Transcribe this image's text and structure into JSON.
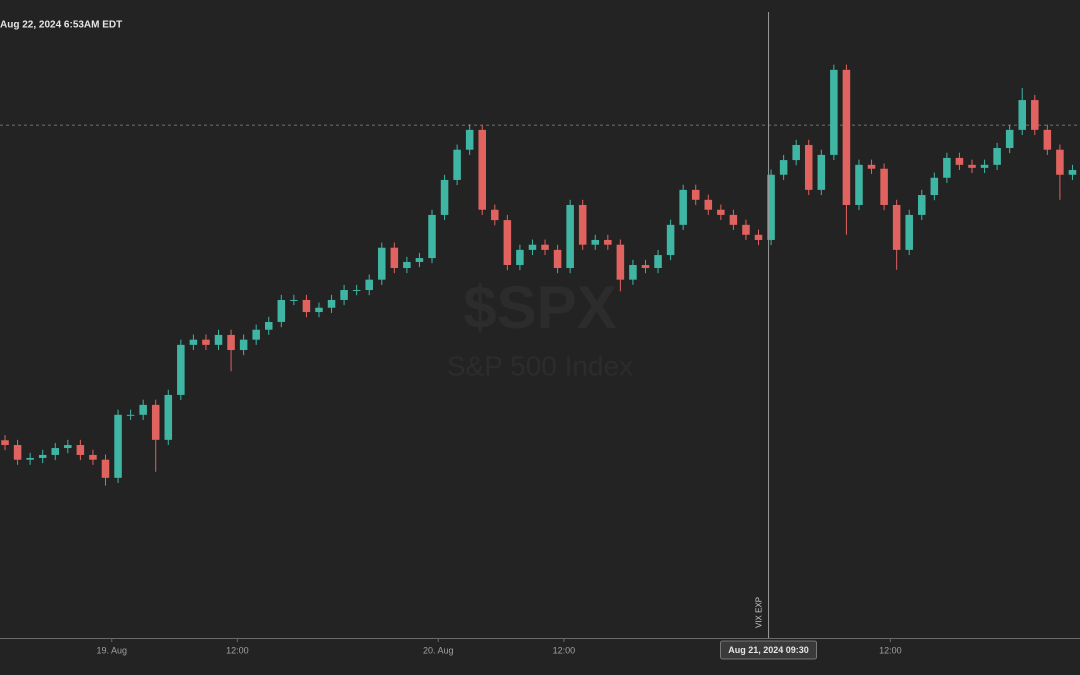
{
  "timestamp": "Aug 22, 2024 6:53AM EDT",
  "chart_data": {
    "type": "candlestick",
    "watermark": {
      "symbol": "$SPX",
      "name": "S&P 500 Index"
    },
    "up_color": "#3fb5a3",
    "down_color": "#e0635f",
    "xlim": [
      -0.4,
      85.6
    ],
    "ylim": [
      5500.2,
      5645.2
    ],
    "xticks": [
      {
        "value": 8.5,
        "label": "19. Aug"
      },
      {
        "value": 18.5,
        "label": "12:00"
      },
      {
        "value": 34.5,
        "label": "20. Aug"
      },
      {
        "value": 44.5,
        "label": "12:00"
      },
      {
        "value": 70.5,
        "label": "12:00"
      }
    ],
    "crosshair": {
      "x": 60.8,
      "y": 5619.0,
      "label": "Aug 21, 2024 09:30"
    },
    "annotation": {
      "x": 60.4,
      "text": "VIX EXP"
    },
    "open": [
      5546.0,
      5544.9,
      5541.5,
      5541.9,
      5542.6,
      5544.2,
      5544.9,
      5542.6,
      5541.5,
      5537.3,
      5551.9,
      5551.9,
      5554.2,
      5546.1,
      5556.5,
      5568.1,
      5569.3,
      5568.1,
      5570.4,
      5566.9,
      5569.3,
      5571.6,
      5573.4,
      5578.5,
      5578.5,
      5575.7,
      5576.7,
      5578.5,
      5580.8,
      5580.8,
      5583.2,
      5590.6,
      5585.9,
      5587.3,
      5588.2,
      5598.2,
      5606.3,
      5613.3,
      5617.9,
      5599.4,
      5597.0,
      5586.6,
      5590.1,
      5591.3,
      5590.1,
      5585.9,
      5600.5,
      5591.3,
      5592.4,
      5591.3,
      5583.2,
      5586.6,
      5585.9,
      5588.9,
      5595.9,
      5604.0,
      5601.7,
      5599.4,
      5598.2,
      5595.9,
      5593.6,
      5592.4,
      5607.5,
      5610.9,
      5614.4,
      5604.0,
      5612.1,
      5631.8,
      5600.5,
      5609.8,
      5608.9,
      5600.5,
      5590.1,
      5598.2,
      5602.8,
      5606.8,
      5611.4,
      5609.8,
      5609.1,
      5609.8,
      5613.7,
      5617.9,
      5624.8,
      5617.9,
      5613.3,
      5607.5
    ],
    "high": [
      5547.2,
      5546.1,
      5543.1,
      5543.8,
      5545.4,
      5546.1,
      5546.1,
      5543.8,
      5542.7,
      5553.1,
      5553.1,
      5555.4,
      5555.4,
      5557.7,
      5569.3,
      5570.5,
      5570.5,
      5571.6,
      5571.6,
      5570.5,
      5572.8,
      5574.6,
      5579.7,
      5579.7,
      5579.7,
      5577.9,
      5579.7,
      5582.0,
      5582.0,
      5584.4,
      5591.8,
      5591.8,
      5588.5,
      5589.4,
      5599.4,
      5607.5,
      5614.5,
      5619.2,
      5619.1,
      5600.6,
      5598.2,
      5591.3,
      5592.5,
      5592.5,
      5591.3,
      5601.7,
      5601.7,
      5593.6,
      5593.6,
      5592.5,
      5587.8,
      5587.8,
      5590.1,
      5597.1,
      5605.2,
      5605.2,
      5602.9,
      5600.6,
      5599.4,
      5597.1,
      5594.8,
      5608.7,
      5612.1,
      5615.6,
      5615.6,
      5613.3,
      5633.0,
      5633.0,
      5611.0,
      5611.0,
      5610.1,
      5601.7,
      5599.4,
      5604.0,
      5608.0,
      5612.6,
      5612.6,
      5611.0,
      5611.0,
      5614.9,
      5619.1,
      5627.6,
      5626.0,
      5619.1,
      5614.5,
      5609.8
    ],
    "low": [
      5543.7,
      5540.3,
      5540.3,
      5540.7,
      5541.4,
      5543.0,
      5541.4,
      5540.3,
      5535.5,
      5536.1,
      5550.7,
      5550.7,
      5538.7,
      5544.9,
      5555.3,
      5566.9,
      5566.9,
      5566.9,
      5562.0,
      5565.7,
      5568.1,
      5570.4,
      5572.2,
      5577.3,
      5574.5,
      5574.5,
      5575.5,
      5577.3,
      5579.6,
      5579.6,
      5582.0,
      5584.7,
      5584.7,
      5586.1,
      5587.0,
      5597.0,
      5605.1,
      5612.1,
      5598.2,
      5595.8,
      5585.4,
      5585.4,
      5588.9,
      5588.9,
      5584.7,
      5584.7,
      5590.1,
      5590.1,
      5590.1,
      5580.5,
      5582.0,
      5584.7,
      5584.7,
      5587.7,
      5594.7,
      5600.5,
      5598.2,
      5597.0,
      5594.7,
      5592.4,
      5591.2,
      5591.2,
      5606.3,
      5609.7,
      5602.8,
      5602.8,
      5610.9,
      5593.6,
      5599.3,
      5607.7,
      5599.3,
      5585.5,
      5588.9,
      5597.0,
      5601.6,
      5605.6,
      5608.6,
      5607.9,
      5607.9,
      5608.6,
      5612.5,
      5616.7,
      5616.7,
      5612.1,
      5601.7,
      5606.3
    ],
    "close": [
      5544.9,
      5541.5,
      5541.9,
      5542.6,
      5544.2,
      5544.9,
      5542.6,
      5541.5,
      5537.3,
      5551.9,
      5551.9,
      5554.2,
      5546.1,
      5556.5,
      5568.1,
      5569.3,
      5568.1,
      5570.4,
      5566.9,
      5569.3,
      5571.6,
      5573.4,
      5578.5,
      5578.5,
      5575.7,
      5576.7,
      5578.5,
      5580.8,
      5580.8,
      5583.2,
      5590.6,
      5585.9,
      5587.3,
      5588.2,
      5598.2,
      5606.3,
      5613.3,
      5617.9,
      5599.4,
      5597.0,
      5586.6,
      5590.1,
      5591.3,
      5590.1,
      5585.9,
      5600.5,
      5591.3,
      5592.4,
      5591.3,
      5583.2,
      5586.6,
      5585.9,
      5588.9,
      5595.9,
      5604.0,
      5601.7,
      5599.4,
      5598.2,
      5595.9,
      5593.6,
      5592.4,
      5607.5,
      5610.9,
      5614.4,
      5604.0,
      5612.1,
      5631.8,
      5600.5,
      5609.8,
      5608.9,
      5600.5,
      5590.1,
      5598.2,
      5602.8,
      5606.8,
      5611.4,
      5609.8,
      5609.1,
      5609.8,
      5613.7,
      5617.9,
      5624.8,
      5617.9,
      5613.3,
      5607.5,
      5608.6
    ]
  }
}
